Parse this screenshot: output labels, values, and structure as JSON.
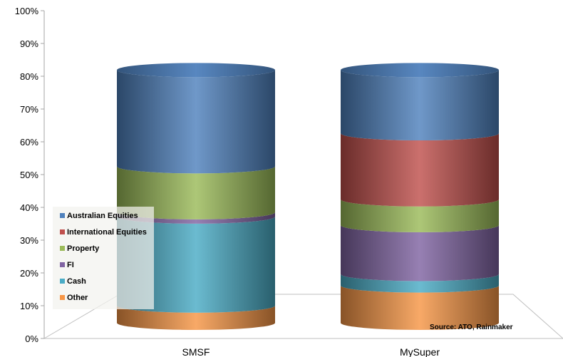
{
  "chart_data": {
    "type": "bar",
    "title": "",
    "xlabel": "",
    "ylabel": "",
    "ylim": [
      0,
      100
    ],
    "yticks": [
      "0%",
      "10%",
      "20%",
      "30%",
      "40%",
      "50%",
      "60%",
      "70%",
      "80%",
      "90%",
      "100%"
    ],
    "categories": [
      "SMSF",
      "MySuper"
    ],
    "series": [
      {
        "name": "Other",
        "color": "#F79646",
        "values": [
          6,
          13
        ]
      },
      {
        "name": "Cash",
        "color": "#4BACC6",
        "values": [
          31,
          4
        ]
      },
      {
        "name": "FI",
        "color": "#8064A2",
        "values": [
          1.5,
          17
        ]
      },
      {
        "name": "Property",
        "color": "#9BBB59",
        "values": [
          16,
          9
        ]
      },
      {
        "name": "International Equities",
        "color": "#C0504D",
        "values": [
          0,
          23
        ]
      },
      {
        "name": "Australian Equities",
        "color": "#4F81BD",
        "values": [
          33.5,
          22
        ]
      }
    ],
    "legend_placement": "left",
    "grid": false,
    "style": "3d-cylinder-stacked",
    "annotation": "Source: ATO, Rainmaker"
  }
}
